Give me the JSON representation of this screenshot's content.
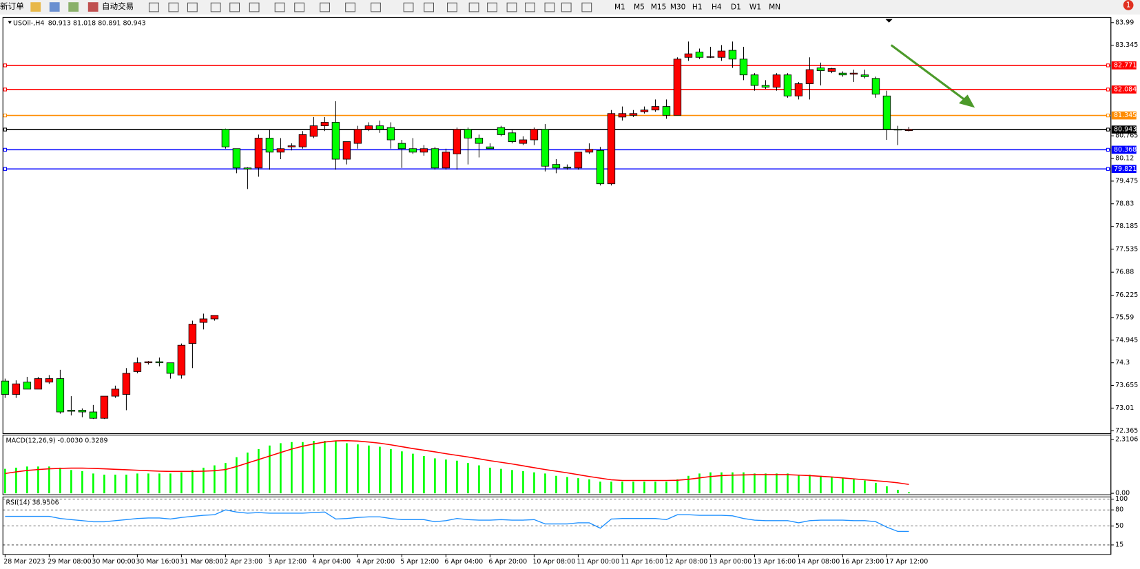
{
  "toolbar": {
    "new_order": "新订单",
    "auto_trading": "自动交易",
    "timeframes": [
      "M1",
      "M5",
      "M15",
      "M30",
      "H1",
      "H4",
      "D1",
      "W1",
      "MN"
    ],
    "notifications": 1
  },
  "chart_data": [
    {
      "type": "candlestick",
      "title": "USOil-,H4",
      "subtitle": "80.913 81.018 80.891 80.943",
      "up_color": "#ff0000",
      "down_color": "#00ff00",
      "categories": [
        "28 Mar 2023",
        null,
        null,
        null,
        "29 Mar 08:00",
        null,
        null,
        null,
        "30 Mar 00:00",
        null,
        null,
        null,
        "30 Mar 16:00",
        null,
        null,
        null,
        "31 Mar 08:00",
        null,
        null,
        null,
        "2 Apr 23:00",
        null,
        null,
        null,
        "3 Apr 12:00",
        null,
        null,
        null,
        "4 Apr 04:00",
        null,
        null,
        null,
        "4 Apr 20:00",
        null,
        null,
        null,
        "5 Apr 12:00",
        null,
        null,
        null,
        "6 Apr 04:00",
        null,
        null,
        null,
        "6 Apr 20:00",
        null,
        null,
        null,
        "10 Apr 08:00",
        null,
        null,
        null,
        "11 Apr 00:00",
        null,
        null,
        null,
        "11 Apr 16:00",
        null,
        null,
        null,
        "12 Apr 08:00",
        null,
        null,
        null,
        "13 Apr 00:00",
        null,
        null,
        null,
        "13 Apr 16:00",
        null,
        null,
        null,
        "14 Apr 08:00",
        null,
        null,
        null,
        "16 Apr 23:00",
        null,
        null,
        null,
        "17 Apr 12:00",
        null,
        null
      ],
      "open": [
        73.78,
        73.4,
        73.75,
        73.55,
        73.75,
        73.85,
        72.95,
        72.95,
        72.9,
        72.72,
        73.35,
        73.4,
        74.05,
        74.3,
        74.33,
        74.3,
        73.95,
        74.85,
        75.45,
        75.55,
        80.95,
        80.4,
        79.85,
        79.85,
        80.7,
        80.3,
        80.45,
        80.45,
        80.75,
        81.05,
        81.15,
        80.1,
        80.55,
        80.95,
        81.05,
        81.0,
        80.55,
        80.4,
        80.3,
        80.4,
        79.85,
        80.25,
        80.95,
        80.7,
        80.45,
        81.0,
        80.85,
        80.55,
        80.65,
        80.95,
        79.95,
        79.87,
        79.85,
        80.3,
        80.35,
        79.4,
        81.3,
        81.35,
        81.45,
        81.5,
        81.6,
        81.35,
        83.0,
        83.15,
        83.0,
        83.0,
        83.2,
        82.95,
        82.5,
        82.2,
        82.15,
        82.5,
        81.9,
        82.25,
        82.7,
        82.6,
        82.55,
        82.52,
        82.5,
        82.4,
        81.9,
        80.95,
        80.913
      ],
      "high": [
        73.85,
        73.8,
        73.9,
        73.9,
        73.95,
        74.1,
        73.35,
        73.0,
        73.1,
        73.35,
        73.65,
        74.15,
        74.45,
        74.35,
        74.45,
        74.3,
        74.85,
        75.5,
        75.7,
        75.65,
        80.97,
        80.4,
        79.87,
        80.8,
        80.95,
        80.7,
        80.55,
        80.9,
        81.3,
        81.3,
        81.75,
        80.6,
        81.05,
        81.15,
        81.2,
        81.15,
        80.65,
        80.7,
        80.5,
        80.45,
        80.4,
        81.0,
        81.0,
        80.8,
        80.55,
        81.05,
        80.95,
        80.75,
        81.0,
        81.1,
        80.1,
        79.95,
        80.3,
        80.55,
        80.45,
        81.5,
        81.6,
        81.5,
        81.6,
        81.8,
        81.8,
        83.0,
        83.45,
        83.25,
        83.3,
        83.35,
        83.45,
        83.3,
        82.55,
        82.35,
        82.55,
        82.55,
        82.3,
        83.0,
        82.85,
        82.7,
        82.6,
        82.65,
        82.65,
        82.45,
        82.05,
        81.05,
        81.018
      ],
      "low": [
        73.3,
        73.3,
        73.55,
        73.55,
        73.7,
        72.85,
        72.8,
        72.75,
        72.7,
        72.7,
        73.3,
        72.95,
        74.0,
        74.25,
        74.2,
        73.85,
        73.85,
        74.15,
        75.25,
        75.5,
        80.4,
        79.7,
        79.25,
        79.6,
        79.8,
        80.1,
        80.35,
        80.4,
        80.7,
        80.9,
        79.8,
        79.95,
        80.4,
        80.9,
        80.85,
        80.4,
        79.85,
        80.25,
        80.2,
        79.8,
        79.8,
        79.8,
        79.95,
        80.15,
        80.4,
        80.75,
        80.55,
        80.5,
        80.5,
        79.75,
        79.7,
        79.8,
        79.8,
        80.25,
        79.35,
        79.35,
        81.2,
        81.3,
        81.4,
        81.45,
        81.25,
        81.35,
        82.9,
        82.95,
        82.98,
        82.9,
        82.7,
        82.35,
        82.05,
        82.1,
        82.05,
        81.85,
        81.8,
        81.8,
        82.2,
        82.55,
        82.45,
        82.3,
        82.4,
        81.85,
        80.65,
        80.5,
        80.891
      ],
      "close": [
        73.4,
        73.7,
        73.55,
        73.85,
        73.85,
        72.9,
        72.92,
        72.9,
        72.72,
        73.35,
        73.55,
        74.0,
        74.3,
        74.33,
        74.3,
        74.0,
        74.8,
        75.4,
        75.55,
        75.65,
        80.45,
        79.85,
        79.82,
        80.7,
        80.3,
        80.4,
        80.48,
        80.8,
        81.05,
        81.15,
        80.1,
        80.6,
        80.95,
        81.05,
        80.95,
        80.65,
        80.4,
        80.3,
        80.4,
        79.85,
        80.3,
        80.95,
        80.7,
        80.55,
        80.4,
        80.8,
        80.6,
        80.65,
        80.95,
        79.9,
        79.85,
        79.85,
        80.3,
        80.38,
        79.4,
        81.4,
        81.4,
        81.4,
        81.5,
        81.6,
        81.35,
        82.95,
        83.1,
        83.0,
        83.02,
        83.18,
        82.95,
        82.5,
        82.2,
        82.15,
        82.5,
        81.9,
        82.25,
        82.65,
        82.62,
        82.68,
        82.5,
        82.55,
        82.45,
        81.95,
        80.95,
        80.93,
        80.943
      ],
      "levels": [
        {
          "value": 82.771,
          "color": "#ff0000"
        },
        {
          "value": 82.084,
          "color": "#ff0000"
        },
        {
          "value": 81.345,
          "color": "#ff8c00"
        },
        {
          "value": 80.943,
          "color": "#000000"
        },
        {
          "value": 80.368,
          "color": "#0000ff"
        },
        {
          "value": 79.821,
          "color": "#0000ff"
        }
      ],
      "ylim": [
        72.365,
        83.99
      ],
      "yticks": [
        83.99,
        83.345,
        80.765,
        80.12,
        79.475,
        78.83,
        78.185,
        77.535,
        76.88,
        76.225,
        75.59,
        74.945,
        74.3,
        73.655,
        73.01,
        72.365
      ]
    },
    {
      "type": "bar",
      "title": "MACD(12,26,9) -0.0030 0.3289",
      "color": "#00ff00",
      "values": [
        1.05,
        1.1,
        1.15,
        1.15,
        1.15,
        1.1,
        1.0,
        0.95,
        0.85,
        0.8,
        0.8,
        0.8,
        0.85,
        0.85,
        0.85,
        0.85,
        0.9,
        1.0,
        1.1,
        1.2,
        1.3,
        1.55,
        1.75,
        1.9,
        2.05,
        2.15,
        2.2,
        2.2,
        2.25,
        2.25,
        2.25,
        2.15,
        2.1,
        2.05,
        2.0,
        1.9,
        1.8,
        1.7,
        1.6,
        1.5,
        1.45,
        1.4,
        1.3,
        1.2,
        1.1,
        1.05,
        1.0,
        0.95,
        0.9,
        0.85,
        0.75,
        0.7,
        0.65,
        0.6,
        0.5,
        0.5,
        0.5,
        0.5,
        0.5,
        0.5,
        0.5,
        0.6,
        0.75,
        0.85,
        0.9,
        0.9,
        0.9,
        0.9,
        0.85,
        0.85,
        0.85,
        0.85,
        0.8,
        0.8,
        0.75,
        0.7,
        0.65,
        0.6,
        0.55,
        0.45,
        0.3,
        0.15,
        0.05
      ],
      "line": {
        "color": "#ff0000",
        "values": [
          0.85,
          0.92,
          0.98,
          1.02,
          1.05,
          1.07,
          1.08,
          1.08,
          1.07,
          1.05,
          1.03,
          1.01,
          0.99,
          0.97,
          0.95,
          0.94,
          0.94,
          0.94,
          0.95,
          0.97,
          1.02,
          1.15,
          1.3,
          1.45,
          1.6,
          1.75,
          1.9,
          2.02,
          2.12,
          2.2,
          2.25,
          2.26,
          2.24,
          2.2,
          2.15,
          2.08,
          2.0,
          1.92,
          1.85,
          1.78,
          1.7,
          1.63,
          1.56,
          1.48,
          1.4,
          1.33,
          1.26,
          1.18,
          1.1,
          1.02,
          0.95,
          0.88,
          0.8,
          0.72,
          0.65,
          0.58,
          0.55,
          0.55,
          0.55,
          0.55,
          0.55,
          0.56,
          0.6,
          0.66,
          0.72,
          0.76,
          0.78,
          0.79,
          0.8,
          0.8,
          0.8,
          0.8,
          0.78,
          0.76,
          0.73,
          0.7,
          0.66,
          0.62,
          0.58,
          0.54,
          0.5,
          0.45,
          0.38
        ]
      },
      "ylim": [
        0,
        2.3106
      ],
      "yticks": [
        2.3106,
        {
          "value": 0,
          "label": "0.00"
        }
      ]
    },
    {
      "type": "line",
      "title": "RSI(14) 38.9506",
      "color": "#1e90ff",
      "values": [
        68,
        68,
        68,
        68,
        68,
        64,
        62,
        60,
        58,
        58,
        60,
        62,
        64,
        65,
        65,
        63,
        66,
        68,
        70,
        71,
        80,
        76,
        74,
        75,
        74,
        74,
        74,
        74,
        75,
        76,
        63,
        64,
        66,
        67,
        67,
        64,
        62,
        62,
        62,
        58,
        60,
        64,
        62,
        61,
        61,
        62,
        61,
        61,
        62,
        54,
        54,
        54,
        56,
        56,
        46,
        63,
        64,
        64,
        64,
        64,
        62,
        71,
        71,
        70,
        70,
        70,
        69,
        64,
        61,
        60,
        60,
        60,
        56,
        60,
        61,
        61,
        61,
        60,
        60,
        58,
        48,
        40,
        40
      ],
      "ylim": [
        0,
        100
      ],
      "yticks": [
        100,
        80,
        50,
        15
      ],
      "grid": true
    }
  ]
}
